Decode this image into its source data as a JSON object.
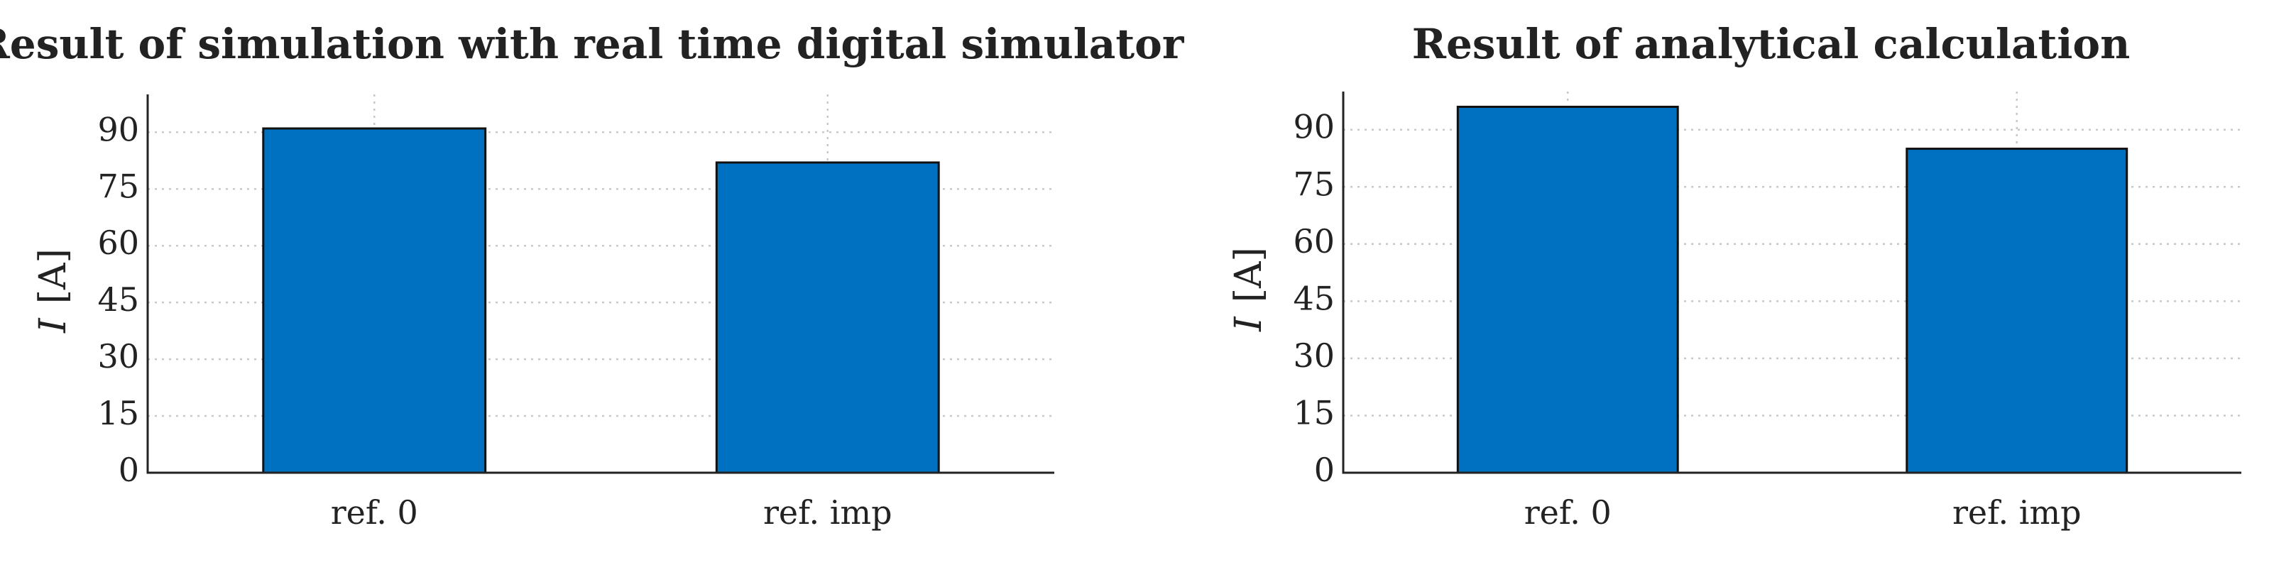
{
  "chart_data": [
    {
      "type": "bar",
      "title": "Result of simulation with real time digital simulator",
      "ylabel_var": "I",
      "ylabel_unit": "[A]",
      "categories": [
        "ref. 0",
        "ref. imp"
      ],
      "values": [
        91,
        82
      ],
      "color": "#0070c0",
      "ylim": [
        0,
        100
      ],
      "yticks": [
        0,
        15,
        30,
        45,
        60,
        75,
        90
      ],
      "grid": true
    },
    {
      "type": "bar",
      "title": "Result of analytical calculation",
      "ylabel_var": "I",
      "ylabel_unit": "[A]",
      "categories": [
        "ref. 0",
        "ref. imp"
      ],
      "values": [
        96,
        85
      ],
      "color": "#0070c0",
      "ylim": [
        0,
        100
      ],
      "yticks": [
        0,
        15,
        30,
        45,
        60,
        75,
        90
      ],
      "grid": true
    }
  ]
}
